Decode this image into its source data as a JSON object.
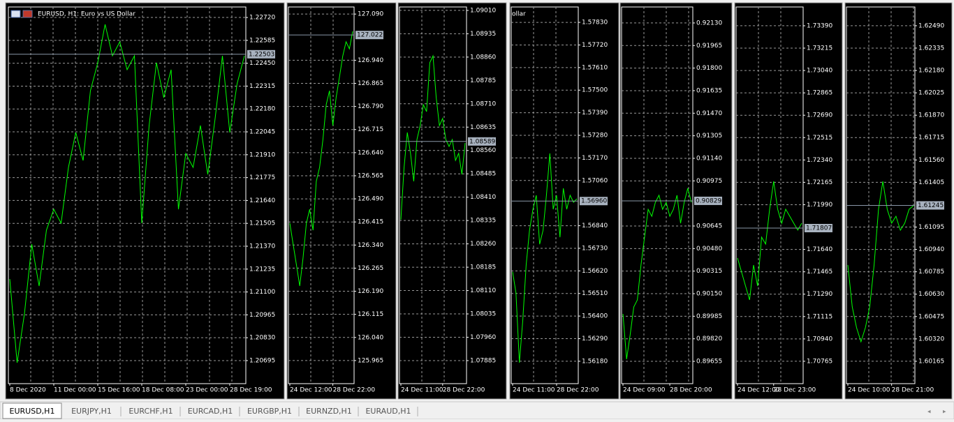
{
  "chart_data": [
    {
      "type": "line",
      "title": "EURUSD, H1: Euro vs US Dollar",
      "series": [
        {
          "color": "#00ff00",
          "values": [
            1.21176,
            1.20682,
            1.20971,
            1.21382,
            1.21135,
            1.21465,
            1.21588,
            1.21506,
            1.21835,
            1.22041,
            1.21876,
            1.22288,
            1.22453,
            1.22679,
            1.22494,
            1.22576,
            1.22412,
            1.22494,
            1.21506,
            1.22082,
            1.22453,
            1.22247,
            1.22412,
            1.21588,
            1.21917,
            1.21835,
            1.22082,
            1.21794,
            1.22123,
            1.22494,
            1.22041,
            1.22329,
            1.22494
          ]
        }
      ],
      "ylim": [
        1.20559,
        1.22782
      ],
      "yticks": [
        {
          "value": 1.2272,
          "label": "1.22720"
        },
        1.22585,
        {
          "value": 1.2245,
          "label": "1.22450"
        },
        1.22315,
        {
          "value": 1.2218,
          "label": "1.22180"
        },
        1.22045,
        {
          "value": 1.2191,
          "label": "1.21910"
        },
        1.21775,
        {
          "value": 1.2164,
          "label": "1.21640"
        },
        1.21505,
        {
          "value": 1.2137,
          "label": "1.21370"
        },
        1.21235,
        {
          "value": 1.211,
          "label": "1.21100"
        },
        1.20965,
        {
          "value": 1.2083,
          "label": "1.20830"
        },
        1.20695
      ],
      "xticks": [
        {
          "value": 0,
          "label": "8 Dec 2020"
        },
        {
          "value": 6,
          "label": "11 Dec 00:00"
        },
        {
          "value": 12,
          "label": "15 Dec 16:00"
        },
        {
          "value": 18,
          "label": "18 Dec 08:00"
        },
        {
          "value": 24,
          "label": "23 Dec 00:00"
        },
        {
          "value": 30,
          "label": "28 Dec 19:00"
        }
      ],
      "price_label": 1.22503
    },
    {
      "type": "line",
      "series": [
        {
          "color": "#00ff00",
          "values": [
            126.411,
            126.343,
            126.275,
            126.207,
            126.298,
            126.411,
            126.456,
            126.388,
            126.547,
            126.592,
            126.683,
            126.796,
            126.841,
            126.728,
            126.819,
            126.886,
            126.954,
            127.0,
            126.977,
            127.034
          ]
        }
      ],
      "ylim": [
        125.89,
        127.113
      ],
      "yticks": [
        {
          "value": 127.09,
          "label": "127.090"
        },
        {
          "value": 126.94,
          "label": "126.940"
        },
        126.865,
        {
          "value": 126.79,
          "label": "126.790"
        },
        126.715,
        {
          "value": 126.64,
          "label": "126.640"
        },
        126.565,
        {
          "value": 126.49,
          "label": "126.490"
        },
        126.415,
        {
          "value": 126.34,
          "label": "126.340"
        },
        126.265,
        {
          "value": 126.19,
          "label": "126.190"
        },
        126.115,
        {
          "value": 126.04,
          "label": "126.040"
        },
        125.965
      ],
      "xticks": [
        {
          "value": 0,
          "label": "24 Dec 12:00"
        },
        {
          "value": 13,
          "label": "28 Dec 22:00"
        }
      ],
      "price_label": 127.022
    },
    {
      "type": "line",
      "series": [
        {
          "color": "#00ff00",
          "values": [
            1.08338,
            1.08506,
            1.08618,
            1.08551,
            1.08461,
            1.08595,
            1.0864,
            1.08707,
            1.08685,
            1.08842,
            1.08864,
            1.0873,
            1.0864,
            1.08663,
            1.08595,
            1.08573,
            1.08595,
            1.08528,
            1.08551,
            1.08483,
            1.08584
          ]
        }
      ],
      "ylim": [
        1.07811,
        1.09021
      ],
      "yticks": [
        {
          "value": 1.0901,
          "label": "1.09010"
        },
        1.08935,
        {
          "value": 1.0886,
          "label": "1.08860"
        },
        1.08785,
        {
          "value": 1.0871,
          "label": "1.08710"
        },
        1.08635,
        {
          "value": 1.0856,
          "label": "1.08560"
        },
        1.08485,
        {
          "value": 1.0841,
          "label": "1.08410"
        },
        1.08335,
        {
          "value": 1.0826,
          "label": "1.08260"
        },
        1.08185,
        {
          "value": 1.0811,
          "label": "1.08110"
        },
        1.08035,
        {
          "value": 1.0796,
          "label": "1.07960"
        },
        1.07885
      ],
      "xticks": [
        {
          "value": 0,
          "label": "24 Dec 11:00"
        },
        {
          "value": 13,
          "label": "28 Dec 22:00"
        }
      ],
      "price_label": 1.08589
    },
    {
      "type": "line",
      "title": "ollar",
      "series": [
        {
          "color": "#00ff00",
          "values": [
            1.56615,
            1.56513,
            1.56173,
            1.56377,
            1.56649,
            1.56818,
            1.5692,
            1.56988,
            1.5675,
            1.56818,
            1.56988,
            1.57192,
            1.5692,
            1.56988,
            1.56784,
            1.57022,
            1.5692,
            1.56988,
            1.56954,
            1.56971
          ]
        }
      ],
      "ylim": [
        1.56071,
        1.57905
      ],
      "yticks": [
        {
          "value": 1.5783,
          "label": "1.57830"
        },
        {
          "value": 1.5772,
          "label": "1.57720"
        },
        {
          "value": 1.5761,
          "label": "1.57610"
        },
        {
          "value": 1.575,
          "label": "1.57500"
        },
        {
          "value": 1.5739,
          "label": "1.57390"
        },
        {
          "value": 1.5728,
          "label": "1.57280"
        },
        {
          "value": 1.5717,
          "label": "1.57170"
        },
        {
          "value": 1.5706,
          "label": "1.57060"
        },
        {
          "value": 1.5684,
          "label": "1.56840"
        },
        {
          "value": 1.5673,
          "label": "1.56730"
        },
        {
          "value": 1.5662,
          "label": "1.56620"
        },
        {
          "value": 1.5651,
          "label": "1.56510"
        },
        {
          "value": 1.564,
          "label": "1.56400"
        },
        {
          "value": 1.5629,
          "label": "1.56290"
        },
        {
          "value": 1.5618,
          "label": "1.56180"
        }
      ],
      "xticks": [
        {
          "value": 0,
          "label": "24 Dec 11:00"
        },
        {
          "value": 13,
          "label": "28 Dec 22:00"
        }
      ],
      "price_label": {
        "value": 1.5696,
        "label": "1.56960"
      }
    },
    {
      "type": "line",
      "series": [
        {
          "color": "#00ff00",
          "values": [
            0.90002,
            0.89671,
            0.89849,
            0.90053,
            0.90104,
            0.90359,
            0.90563,
            0.90767,
            0.90716,
            0.90818,
            0.9087,
            0.90767,
            0.90818,
            0.90716,
            0.90767,
            0.9087,
            0.90665,
            0.90818,
            0.90921,
            0.90818
          ]
        }
      ],
      "ylim": [
        0.89492,
        0.92247
      ],
      "yticks": [
        {
          "value": 0.9213,
          "label": "0.92130"
        },
        0.91965,
        {
          "value": 0.918,
          "label": "0.91800"
        },
        0.91635,
        {
          "value": 0.9147,
          "label": "0.91470"
        },
        0.91305,
        {
          "value": 0.9114,
          "label": "0.91140"
        },
        0.90975,
        0.90645,
        {
          "value": 0.9048,
          "label": "0.90480"
        },
        0.90315,
        {
          "value": 0.9015,
          "label": "0.90150"
        },
        0.89985,
        {
          "value": 0.8982,
          "label": "0.89820"
        },
        0.89655
      ],
      "xticks": [
        {
          "value": 0,
          "label": "24 Dec 09:00"
        },
        {
          "value": 13,
          "label": "28 Dec 20:00"
        }
      ],
      "price_label": 0.90829
    },
    {
      "type": "line",
      "series": [
        {
          "color": "#00ff00",
          "values": [
            1.71573,
            1.71463,
            1.71354,
            1.71245,
            1.71518,
            1.71354,
            1.71736,
            1.71682,
            1.71955,
            1.72173,
            1.71955,
            1.71845,
            1.71955,
            1.719,
            1.71845,
            1.71791,
            1.71845
          ]
        }
      ],
      "ylim": [
        1.7059,
        1.73537
      ],
      "yticks": [
        {
          "value": 1.7339,
          "label": "1.73390"
        },
        1.73215,
        {
          "value": 1.7304,
          "label": "1.73040"
        },
        1.72865,
        {
          "value": 1.7269,
          "label": "1.72690"
        },
        1.72515,
        {
          "value": 1.7234,
          "label": "1.72340"
        },
        1.72165,
        {
          "value": 1.7199,
          "label": "1.71990"
        },
        {
          "value": 1.7164,
          "label": "1.71640"
        },
        1.71465,
        {
          "value": 1.7129,
          "label": "1.71290"
        },
        1.71115,
        {
          "value": 1.7094,
          "label": "1.70940"
        },
        1.70765
      ],
      "xticks": [
        {
          "value": 0,
          "label": "24 Dec 12:00"
        },
        {
          "value": 9,
          "label": "28 Dec 23:00"
        }
      ],
      "price_label": 1.71807
    },
    {
      "type": "line",
      "series": [
        {
          "color": "#00ff00",
          "values": [
            1.60832,
            1.60542,
            1.60397,
            1.603,
            1.60397,
            1.60542,
            1.60832,
            1.61218,
            1.61412,
            1.61218,
            1.61122,
            1.6117,
            1.61073,
            1.61122,
            1.61218,
            1.61243
          ]
        }
      ],
      "ylim": [
        1.6001,
        1.6262
      ],
      "yticks": [
        {
          "value": 1.6249,
          "label": "1.62490"
        },
        1.62335,
        {
          "value": 1.6218,
          "label": "1.62180"
        },
        1.62025,
        {
          "value": 1.6187,
          "label": "1.61870"
        },
        1.61715,
        {
          "value": 1.6156,
          "label": "1.61560"
        },
        1.61405,
        1.61095,
        {
          "value": 1.6094,
          "label": "1.60940"
        },
        1.60785,
        {
          "value": 1.6063,
          "label": "1.60630"
        },
        1.60475,
        {
          "value": 1.6032,
          "label": "1.60320"
        },
        1.60165
      ],
      "xticks": [
        {
          "value": 0,
          "label": "24 Dec 10:00"
        },
        {
          "value": 10,
          "label": "28 Dec 21:00"
        }
      ],
      "price_label": 1.61245
    }
  ],
  "tabs": [
    "EURUSD,H1",
    "EURJPY,H1",
    "EURCHF,H1",
    "EURCAD,H1",
    "EURGBP,H1",
    "EURNZD,H1",
    "EURAUD,H1"
  ]
}
